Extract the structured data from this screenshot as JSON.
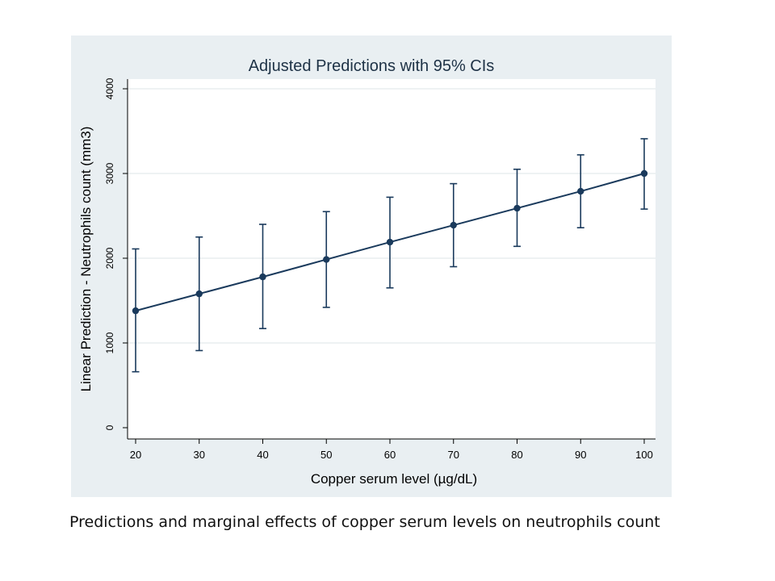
{
  "caption": "Predictions and marginal effects of copper serum levels on neutrophils count",
  "chart_data": {
    "type": "line",
    "title": "Adjusted Predictions with 95% CIs",
    "xlabel": "Copper serum level (µg/dL)",
    "ylabel": "Linear Prediction - Neutrophils count (mm3)",
    "x": [
      20,
      30,
      40,
      50,
      60,
      70,
      80,
      90,
      100
    ],
    "series": [
      {
        "values": [
          1380,
          1580,
          1780,
          1985,
          2190,
          2390,
          2590,
          2790,
          3000
        ],
        "ci_lower": [
          660,
          910,
          1170,
          1420,
          1650,
          1900,
          2140,
          2360,
          2580
        ],
        "ci_upper": [
          2110,
          2250,
          2400,
          2550,
          2720,
          2880,
          3050,
          3220,
          3410
        ],
        "color": "#1a3a5c"
      }
    ],
    "x_ticks": [
      20,
      30,
      40,
      50,
      60,
      70,
      80,
      90,
      100
    ],
    "y_ticks": [
      0,
      1000,
      2000,
      3000,
      4000
    ],
    "xlim": [
      20,
      100
    ],
    "ylim": [
      0,
      4000
    ],
    "grid": true,
    "legend": "none",
    "panel_color": "#e9eff2",
    "plot_color": "#ffffff"
  }
}
